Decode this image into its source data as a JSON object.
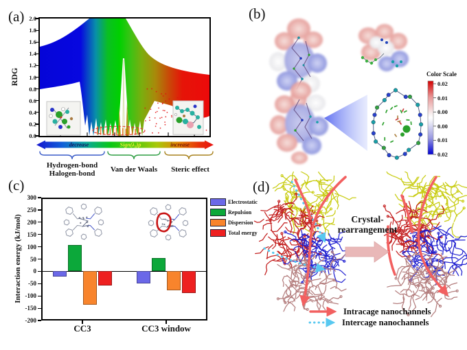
{
  "panels": {
    "a": {
      "label": "(a)",
      "ylabel": "RDG",
      "yticks": [
        "2.0",
        "1.8",
        "1.6",
        "1.4",
        "1.2",
        "1.0",
        "0.8",
        "0.6",
        "0.4",
        "0.2",
        "0.0"
      ],
      "gradient_bar": {
        "left_label": "decrease",
        "center_label": "Sign(λ₂)ρ",
        "right_label": "increase"
      },
      "regions": {
        "left_line1": "Hydrogen-bond",
        "left_line2": "Halogen-bond",
        "middle": "Van der Waals",
        "right": "Steric effect"
      }
    },
    "b": {
      "label": "(b)",
      "color_scale": {
        "title": "Color Scale",
        "ticks": [
          "0.02",
          "0.01",
          "0.00",
          "0.00",
          "0.01",
          "0.02"
        ],
        "top_color": "#d40000",
        "bottom_color": "#0000d4"
      }
    },
    "c": {
      "label": "(c)"
    },
    "d": {
      "label": "(d)",
      "arrow_label_line1": "Crystal-",
      "arrow_label_line2": "rearrangement",
      "legend": [
        {
          "style": "solid",
          "color": "#f26060",
          "label": "Intracage nanochannels"
        },
        {
          "style": "dotted",
          "color": "#58c8f0",
          "label": "Intercage nanochannels"
        }
      ]
    }
  },
  "chart_data": [
    {
      "id": "rdg-nci-plot",
      "type": "scatter",
      "ylabel": "RDG",
      "ylim": [
        0.0,
        2.0
      ],
      "yticks": [
        2.0,
        1.8,
        1.6,
        1.4,
        1.2,
        1.0,
        0.8,
        0.6,
        0.4,
        0.2,
        0.0
      ],
      "xlabel": "Sign(λ₂)ρ",
      "x_regions": [
        {
          "label": "Hydrogen-bond / Halogen-bond",
          "trend": "decrease",
          "color": "blue"
        },
        {
          "label": "Van der Waals",
          "color": "green"
        },
        {
          "label": "Steric effect",
          "trend": "increase",
          "color": "red"
        }
      ],
      "annotations": [
        "red dashed ellipse highlighting low-RDG spikes near Sign(λ₂)ρ ≈ 0"
      ]
    },
    {
      "id": "interaction-energy-chart",
      "type": "bar",
      "ylabel": "Interaction energy (kJ/mol)",
      "ylim": [
        -200,
        300
      ],
      "yticks": [
        300,
        250,
        200,
        150,
        100,
        50,
        0,
        -50,
        -100,
        -150,
        -200
      ],
      "categories": [
        "CC3",
        "CC3 window"
      ],
      "series": [
        {
          "name": "Electrostatic",
          "color": "#6b68e8",
          "values": [
            -20,
            -50
          ]
        },
        {
          "name": "Repulsion",
          "color": "#0ca83a",
          "values": [
            107,
            55
          ]
        },
        {
          "name": "Dispersion",
          "color": "#f8842c",
          "values": [
            -137,
            -78
          ]
        },
        {
          "name": "Total energy",
          "color": "#ee2020",
          "values": [
            -58,
            -88
          ]
        }
      ],
      "legend_position": "top-right",
      "grid": false
    }
  ]
}
